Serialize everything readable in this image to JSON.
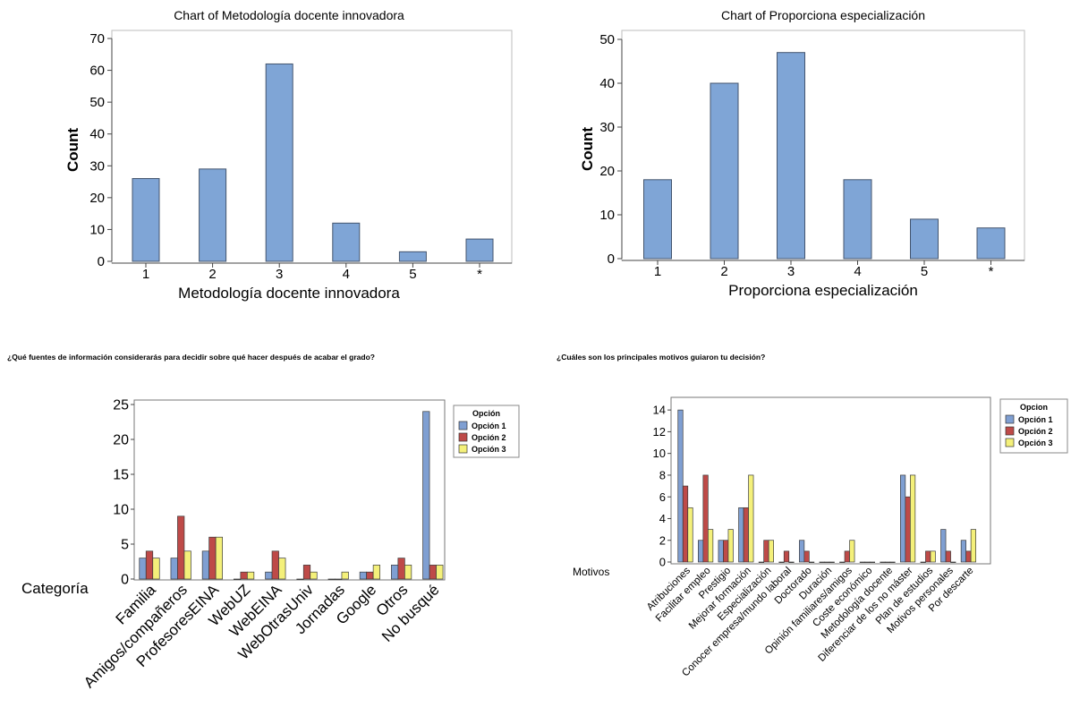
{
  "captions": {
    "left": "¿Qué fuentes de información considerarás para decidir sobre qué hacer después de acabar el grado?",
    "right": "¿Cuáles son los principales motivos guiaron tu decisión?"
  },
  "colors": {
    "bar": "#7fa5d6",
    "bar_stroke": "#44556e",
    "opt1": "#7f9fd2",
    "opt2": "#be4a48",
    "opt3": "#f4f07a"
  },
  "chart_data": [
    {
      "type": "bar",
      "title": "Chart of Metodología docente innovadora",
      "xlabel": "Metodología docente innovadora",
      "ylabel": "Count",
      "categories": [
        "1",
        "2",
        "3",
        "4",
        "5",
        "*"
      ],
      "values": [
        26,
        29,
        62,
        12,
        3,
        7
      ],
      "ylim": [
        0,
        70
      ],
      "yticks": [
        "0",
        "10",
        "20",
        "30",
        "40",
        "50",
        "60",
        "70"
      ]
    },
    {
      "type": "bar",
      "title": "Chart of Proporciona especialización",
      "xlabel": "Proporciona especialización",
      "ylabel": "Count",
      "categories": [
        "1",
        "2",
        "3",
        "4",
        "5",
        "*"
      ],
      "values": [
        18,
        40,
        47,
        18,
        9,
        7
      ],
      "ylim": [
        0,
        50
      ],
      "yticks": [
        "0",
        "10",
        "20",
        "30",
        "40",
        "50"
      ]
    },
    {
      "type": "bar",
      "xlabel": "Categoría",
      "legend_title": "Opción",
      "legend_position": "top-right",
      "categories": [
        "Familia",
        "Amigos/compañeros",
        "ProfesoresEINA",
        "WebUZ",
        "WebEINA",
        "WebOtrasUniv",
        "Jornadas",
        "Google",
        "Otros",
        "No busqué"
      ],
      "series": [
        {
          "name": "Opción 1",
          "values": [
            3,
            3,
            4,
            0,
            1,
            0,
            0,
            1,
            2,
            24
          ]
        },
        {
          "name": "Opción 2",
          "values": [
            4,
            9,
            6,
            1,
            4,
            2,
            0,
            1,
            3,
            2
          ]
        },
        {
          "name": "Opción 3",
          "values": [
            3,
            4,
            6,
            1,
            3,
            1,
            1,
            2,
            2,
            2
          ]
        }
      ],
      "ylim": [
        0,
        25
      ],
      "yticks": [
        "0",
        "5",
        "10",
        "15",
        "20",
        "25"
      ]
    },
    {
      "type": "bar",
      "xlabel": "Motivos",
      "legend_title": "Opcion",
      "legend_position": "top-right",
      "categories": [
        "Atribuciones",
        "Facilitar empleo",
        "Prestigio",
        "Mejorar formación",
        "Especialización",
        "Conocer empresa/mundo laboral",
        "Doctorado",
        "Duración",
        "Opinión familiares/amigos",
        "Coste económico",
        "Metodología docente",
        "Diferenciar de los no máster",
        "Plan de estudios",
        "Motivos personales",
        "Por descarte"
      ],
      "series": [
        {
          "name": "Opción 1",
          "values": [
            14,
            2,
            2,
            5,
            0,
            0,
            2,
            0,
            0,
            0,
            0,
            8,
            0,
            3,
            2
          ]
        },
        {
          "name": "Opción 2",
          "values": [
            7,
            8,
            2,
            5,
            2,
            1,
            1,
            0,
            1,
            0,
            0,
            6,
            1,
            1,
            1
          ]
        },
        {
          "name": "Opción 3",
          "values": [
            5,
            3,
            3,
            8,
            2,
            0,
            0,
            0,
            2,
            0,
            0,
            8,
            1,
            0,
            3
          ]
        }
      ],
      "ylim": [
        0,
        15
      ],
      "yticks": [
        "0",
        "2",
        "4",
        "6",
        "8",
        "10",
        "12",
        "14"
      ]
    }
  ]
}
